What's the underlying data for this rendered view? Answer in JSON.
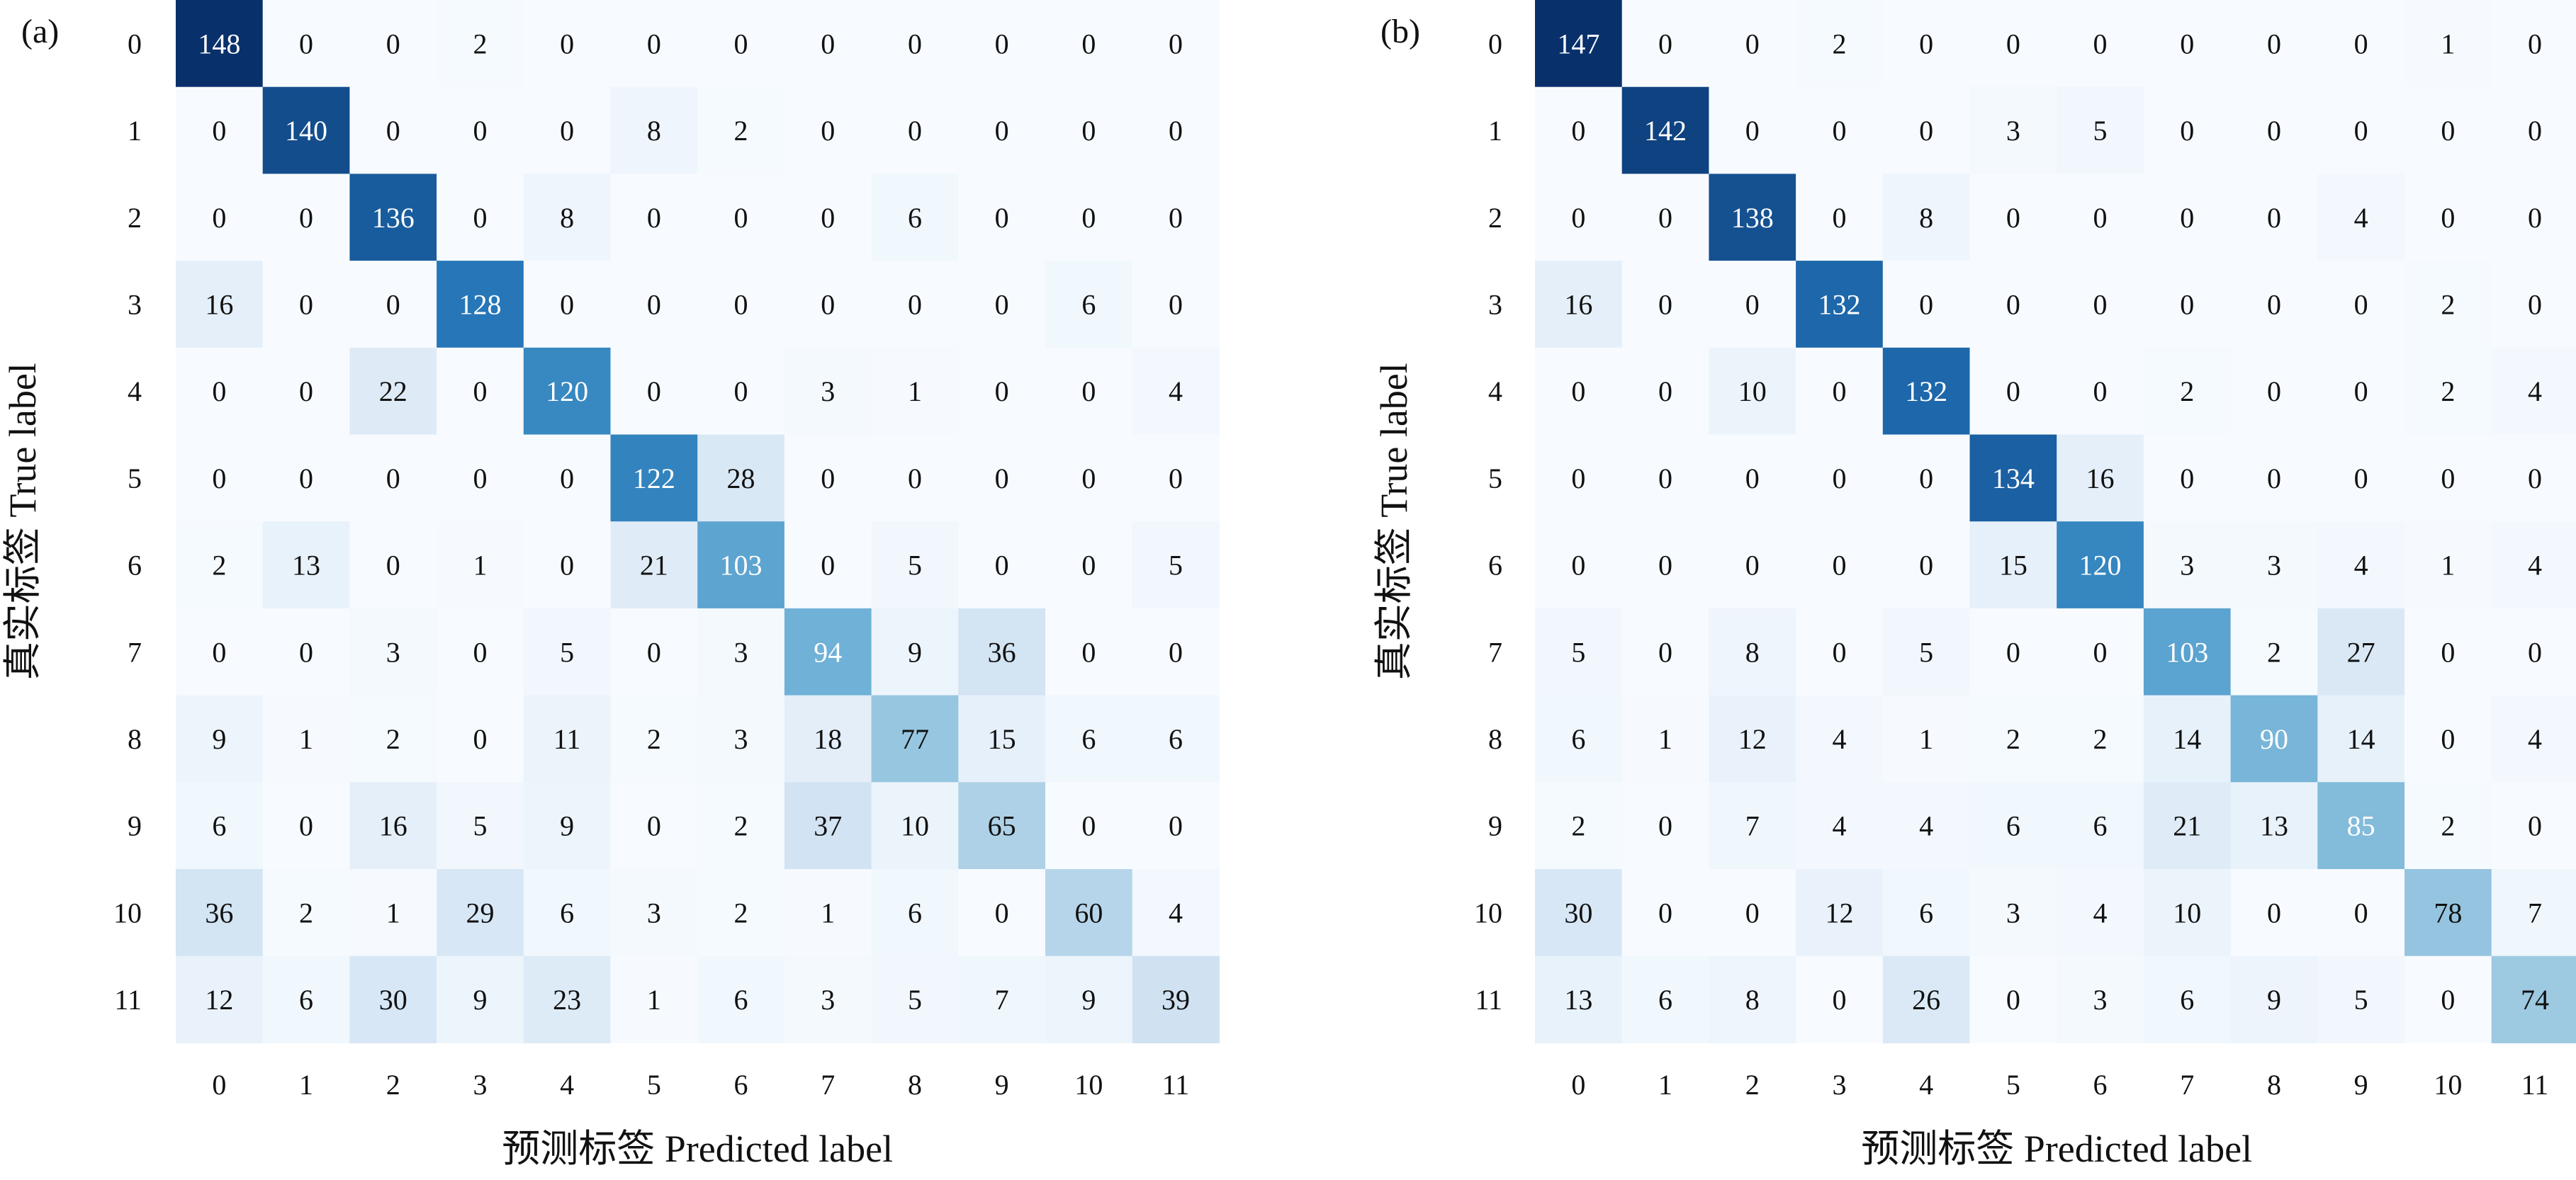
{
  "chart_data": [
    {
      "type": "heatmap",
      "panel_label": "(a)",
      "xlabel": "预测标签 Predicted label",
      "ylabel": "真实标签 True label",
      "x_categories": [
        "0",
        "1",
        "2",
        "3",
        "4",
        "5",
        "6",
        "7",
        "8",
        "9",
        "10",
        "11"
      ],
      "y_categories": [
        "0",
        "1",
        "2",
        "3",
        "4",
        "5",
        "6",
        "7",
        "8",
        "9",
        "10",
        "11"
      ],
      "colormap": "Blues",
      "vmin": 0,
      "vmax": 148,
      "values": [
        [
          148,
          0,
          0,
          2,
          0,
          0,
          0,
          0,
          0,
          0,
          0,
          0
        ],
        [
          0,
          140,
          0,
          0,
          0,
          8,
          2,
          0,
          0,
          0,
          0,
          0
        ],
        [
          0,
          0,
          136,
          0,
          8,
          0,
          0,
          0,
          6,
          0,
          0,
          0
        ],
        [
          16,
          0,
          0,
          128,
          0,
          0,
          0,
          0,
          0,
          0,
          6,
          0
        ],
        [
          0,
          0,
          22,
          0,
          120,
          0,
          0,
          3,
          1,
          0,
          0,
          4
        ],
        [
          0,
          0,
          0,
          0,
          0,
          122,
          28,
          0,
          0,
          0,
          0,
          0
        ],
        [
          2,
          13,
          0,
          1,
          0,
          21,
          103,
          0,
          5,
          0,
          0,
          5
        ],
        [
          0,
          0,
          3,
          0,
          5,
          0,
          3,
          94,
          9,
          36,
          0,
          0
        ],
        [
          9,
          1,
          2,
          0,
          11,
          2,
          3,
          18,
          77,
          15,
          6,
          6
        ],
        [
          6,
          0,
          16,
          5,
          9,
          0,
          2,
          37,
          10,
          65,
          0,
          0
        ],
        [
          36,
          2,
          1,
          29,
          6,
          3,
          2,
          1,
          6,
          0,
          60,
          4
        ],
        [
          12,
          6,
          30,
          9,
          23,
          1,
          6,
          3,
          5,
          7,
          9,
          39
        ]
      ]
    },
    {
      "type": "heatmap",
      "panel_label": "(b)",
      "xlabel": "预测标签 Predicted label",
      "ylabel": "真实标签 True label",
      "x_categories": [
        "0",
        "1",
        "2",
        "3",
        "4",
        "5",
        "6",
        "7",
        "8",
        "9",
        "10",
        "11"
      ],
      "y_categories": [
        "0",
        "1",
        "2",
        "3",
        "4",
        "5",
        "6",
        "7",
        "8",
        "9",
        "10",
        "11"
      ],
      "colormap": "Blues",
      "vmin": 0,
      "vmax": 147,
      "values": [
        [
          147,
          0,
          0,
          2,
          0,
          0,
          0,
          0,
          0,
          0,
          1,
          0
        ],
        [
          0,
          142,
          0,
          0,
          0,
          3,
          5,
          0,
          0,
          0,
          0,
          0
        ],
        [
          0,
          0,
          138,
          0,
          8,
          0,
          0,
          0,
          0,
          4,
          0,
          0
        ],
        [
          16,
          0,
          0,
          132,
          0,
          0,
          0,
          0,
          0,
          0,
          2,
          0
        ],
        [
          0,
          0,
          10,
          0,
          132,
          0,
          0,
          2,
          0,
          0,
          2,
          4
        ],
        [
          0,
          0,
          0,
          0,
          0,
          134,
          16,
          0,
          0,
          0,
          0,
          0
        ],
        [
          0,
          0,
          0,
          0,
          0,
          15,
          120,
          3,
          3,
          4,
          1,
          4
        ],
        [
          5,
          0,
          8,
          0,
          5,
          0,
          0,
          103,
          2,
          27,
          0,
          0
        ],
        [
          6,
          1,
          12,
          4,
          1,
          2,
          2,
          14,
          90,
          14,
          0,
          4
        ],
        [
          2,
          0,
          7,
          4,
          4,
          6,
          6,
          21,
          13,
          85,
          2,
          0
        ],
        [
          30,
          0,
          0,
          12,
          6,
          3,
          4,
          10,
          0,
          0,
          78,
          7
        ],
        [
          13,
          6,
          8,
          0,
          26,
          0,
          3,
          6,
          9,
          5,
          0,
          74
        ]
      ]
    }
  ]
}
